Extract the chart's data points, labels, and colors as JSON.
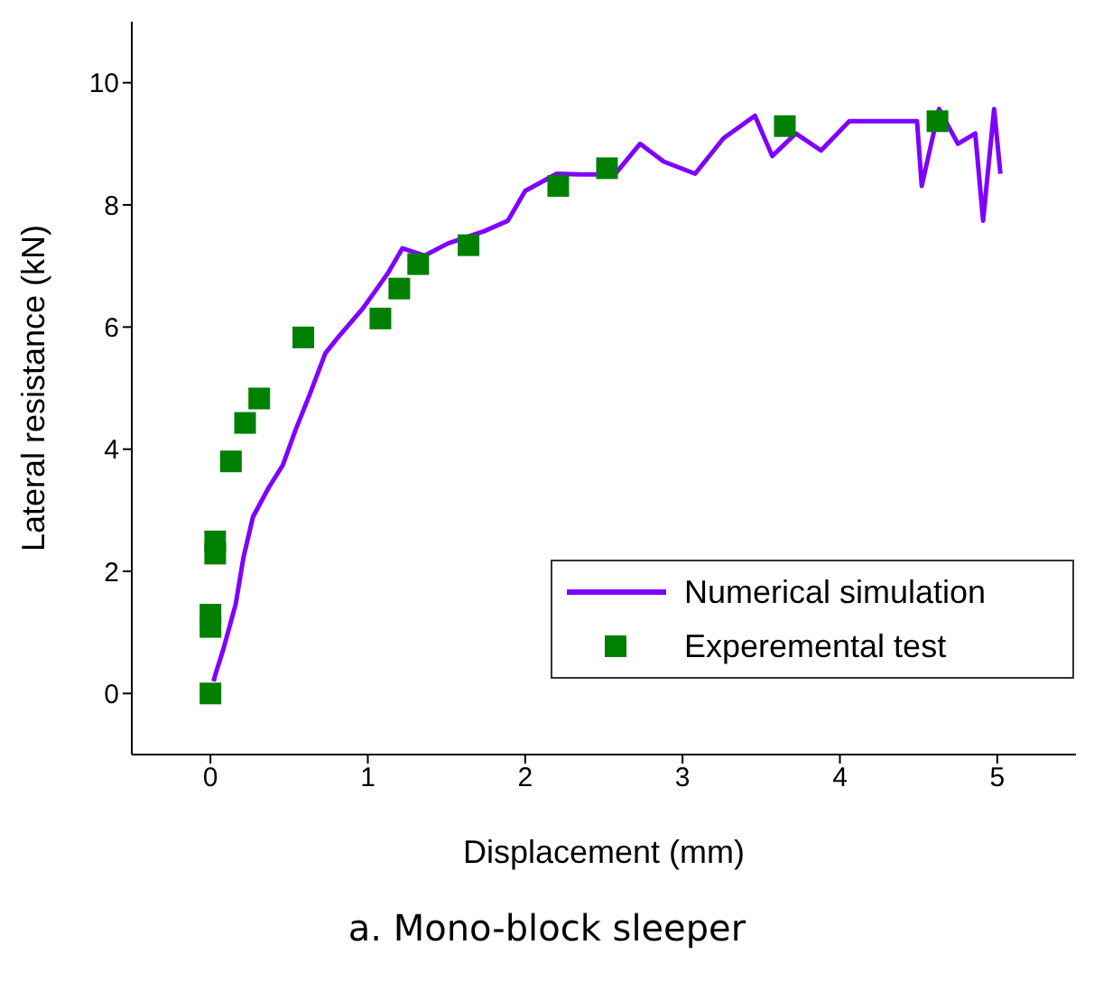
{
  "chart_data": {
    "type": "line",
    "xlabel": "Displacement (mm)",
    "ylabel": "Lateral resistance (kN)",
    "annotations": [
      "a. Mono-block sleeper"
    ],
    "xlim": [
      -0.5,
      5.5
    ],
    "ylim": [
      -1,
      11
    ],
    "xticks": [
      0,
      1,
      2,
      3,
      4,
      5
    ],
    "yticks": [
      0,
      2,
      4,
      6,
      8,
      10
    ],
    "grid": false,
    "legend": "bottom right",
    "series": [
      {
        "name": "Numerical simulation",
        "color": "#7f00ff",
        "marker": "none",
        "line_style": "solid",
        "x": [
          0.02,
          0.03,
          0.08,
          0.16,
          0.21,
          0.27,
          0.37,
          0.46,
          0.54,
          0.63,
          0.73,
          0.82,
          0.97,
          1.13,
          1.22,
          1.36,
          1.51,
          1.74,
          1.89,
          2.0,
          2.2,
          2.35,
          2.57,
          2.73,
          2.88,
          3.08,
          3.26,
          3.46,
          3.57,
          3.72,
          3.88,
          4.06,
          4.26,
          4.49,
          4.52,
          4.63,
          4.75,
          4.86,
          4.91,
          4.98,
          5.02
        ],
        "values": [
          0.2,
          0.3,
          0.71,
          1.46,
          2.23,
          2.89,
          3.37,
          3.74,
          4.31,
          4.89,
          5.57,
          5.86,
          6.31,
          6.89,
          7.29,
          7.17,
          7.37,
          7.57,
          7.74,
          8.23,
          8.51,
          8.5,
          8.5,
          9.0,
          8.71,
          8.51,
          9.09,
          9.46,
          8.8,
          9.17,
          8.89,
          9.37,
          9.37,
          9.37,
          8.31,
          9.57,
          9.0,
          9.17,
          7.74,
          9.57,
          8.51
        ]
      },
      {
        "name": "Experemental test",
        "type": "scatter",
        "color": "#008000",
        "marker": "square",
        "x": [
          0,
          0,
          0,
          0.03,
          0.03,
          0.13,
          0.22,
          0.31,
          0.59,
          1.08,
          1.2,
          1.32,
          1.64,
          2.21,
          2.52,
          3.65,
          4.62
        ],
        "values": [
          0,
          1.09,
          1.29,
          2.29,
          2.49,
          3.8,
          4.43,
          4.83,
          5.83,
          6.14,
          6.63,
          7.03,
          7.34,
          8.31,
          8.6,
          9.29,
          9.37
        ]
      }
    ]
  }
}
